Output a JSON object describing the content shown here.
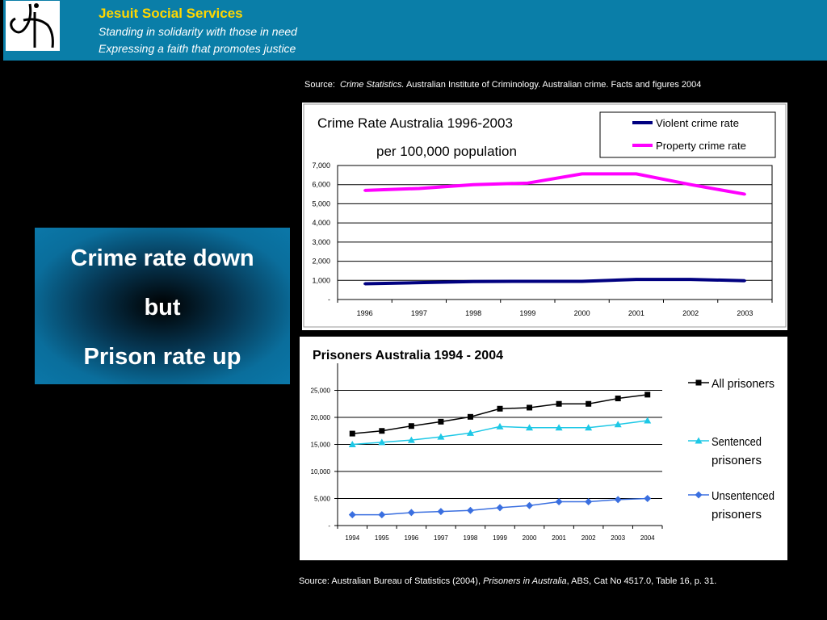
{
  "header": {
    "org_name": "Jesuit Social Services",
    "tagline1": "Standing in solidarity with those in need",
    "tagline2": "Expressing a faith that promotes justice",
    "logo_icon": "jss-logo"
  },
  "source_top": {
    "prefix": "Source:",
    "title": "Crime Statistics.",
    "rest": "Australian Institute of Criminology. Australian crime. Facts and figures 2004"
  },
  "callout": {
    "line1": "Crime rate down",
    "line2": "but",
    "line3": "Prison rate up"
  },
  "source_bottom": {
    "prefix": "Source:  Australian Bureau of Statistics (2004),",
    "title": "Prisoners in Australia",
    "rest": ", ABS, Cat No 4517.0, Table 16, p. 31."
  },
  "chart_data": [
    {
      "type": "line",
      "title": "Crime Rate Australia 1996-2003",
      "subtitle": "per 100,000 population",
      "x": [
        "1996",
        "1997",
        "1998",
        "1999",
        "2000",
        "2001",
        "2002",
        "2003"
      ],
      "ylim": [
        0,
        7000
      ],
      "yticks": [
        0,
        1000,
        2000,
        3000,
        4000,
        5000,
        6000,
        7000
      ],
      "ytick_labels": [
        "-",
        "1,000",
        "2,000",
        "3,000",
        "4,000",
        "5,000",
        "6,000",
        "7,000"
      ],
      "grid": true,
      "legend": "top-right",
      "series": [
        {
          "name": "Violent crime rate",
          "color": "#000080",
          "values": [
            820,
            880,
            940,
            950,
            950,
            1050,
            1050,
            980
          ]
        },
        {
          "name": "Property crime rate",
          "color": "#ff00ff",
          "values": [
            5700,
            5800,
            6000,
            6080,
            6560,
            6560,
            6000,
            5500
          ]
        }
      ]
    },
    {
      "type": "line",
      "title": "Prisoners Australia  1994 - 2004",
      "x": [
        "1994",
        "1995",
        "1996",
        "1997",
        "1998",
        "1999",
        "2000",
        "2001",
        "2002",
        "2003",
        "2004"
      ],
      "ylim": [
        0,
        30000
      ],
      "yticks": [
        0,
        5000,
        10000,
        15000,
        20000,
        25000
      ],
      "ytick_labels": [
        "-",
        "5,000",
        "10,000",
        "15,000",
        "20,000",
        "25,000"
      ],
      "grid": true,
      "legend": "right",
      "series": [
        {
          "name": "All prisoners",
          "color": "#000000",
          "marker": "square",
          "values": [
            17000,
            17500,
            18400,
            19200,
            20100,
            21600,
            21800,
            22500,
            22500,
            23500,
            24200
          ]
        },
        {
          "name": "Sentenced prisoners",
          "color": "#1ec8e6",
          "marker": "triangle",
          "values": [
            15000,
            15400,
            15800,
            16400,
            17100,
            18300,
            18100,
            18100,
            18100,
            18700,
            19400
          ]
        },
        {
          "name": "Unsentenced prisoners",
          "color": "#3a6fe0",
          "marker": "diamond",
          "values": [
            2000,
            2000,
            2400,
            2600,
            2800,
            3300,
            3700,
            4400,
            4400,
            4800,
            5000
          ]
        }
      ]
    }
  ]
}
